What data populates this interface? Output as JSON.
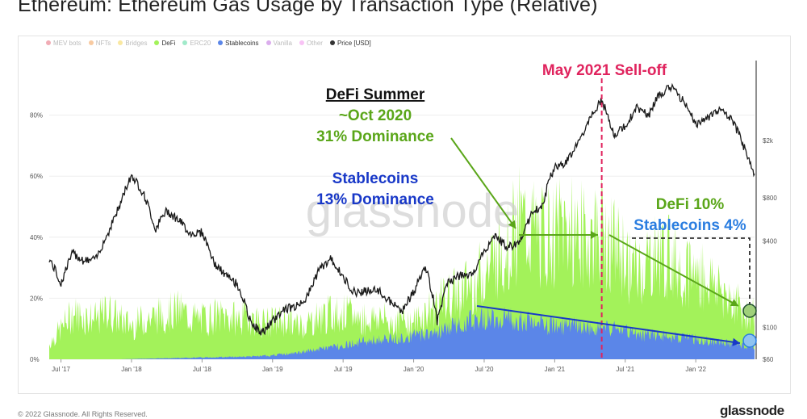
{
  "title": "Ethereum: Ethereum Gas Usage by Transaction Type (Relative)",
  "legend": [
    {
      "label": "MEV bots",
      "color": "#e0485a",
      "active": false
    },
    {
      "label": "NFTs",
      "color": "#f08a2e",
      "active": false
    },
    {
      "label": "Bridges",
      "color": "#f2cc2e",
      "active": false
    },
    {
      "label": "DeFi",
      "color": "#a3f25a",
      "active": true
    },
    {
      "label": "ERC20",
      "color": "#2ed189",
      "active": false
    },
    {
      "label": "Stablecoins",
      "color": "#5b86e8",
      "active": true
    },
    {
      "label": "Vanilla",
      "color": "#b04ad8",
      "active": false
    },
    {
      "label": "Other",
      "color": "#f07ae8",
      "active": false
    },
    {
      "label": "Price [USD]",
      "color": "#333333",
      "active": true
    }
  ],
  "watermark": "glassnode",
  "annotations": {
    "selloff": "May 2021 Sell-off",
    "defi_summer_heading": "DeFi Summer",
    "defi_summer_date": "~Oct 2020",
    "defi_summer_dominance": "31% Dominance",
    "stable_title": "Stablecoins",
    "stable_dominance": "13% Dominance",
    "defi_now": "DeFi 10%",
    "stable_now": "Stablecoins 4%"
  },
  "colors": {
    "defi": "#a3f25a",
    "stablecoins": "#5b86e8",
    "price": "#1a1a1a",
    "selloff": "#e0245e",
    "green_text": "#5aa619",
    "blue_text": "#1838c8",
    "stable_now_text": "#2a7de0"
  },
  "footer": {
    "copyright": "© 2022 Glassnode. All Rights Reserved.",
    "brand": "glassnode"
  },
  "chart_data": {
    "type": "area",
    "x_ticks": [
      "Jul '17",
      "Jan '18",
      "Jul '18",
      "Jan '19",
      "Jul '19",
      "Jan '20",
      "Jul '20",
      "Jan '21",
      "Jul '21",
      "Jan '22"
    ],
    "y_left_ticks": [
      "0%",
      "20%",
      "40%",
      "60%",
      "80%"
    ],
    "y_right_ticks": [
      "$60",
      "$100",
      "$400",
      "$800",
      "$2k"
    ],
    "y_left_range": [
      0,
      100
    ],
    "price_scale": "log",
    "x_range": [
      "2017-06",
      "2022-06"
    ],
    "series": [
      {
        "name": "DeFi",
        "unit": "% of gas (total incl. Stablecoins)",
        "points": [
          [
            "2017-06",
            5
          ],
          [
            "2017-07",
            10
          ],
          [
            "2017-08",
            15
          ],
          [
            "2017-09",
            14
          ],
          [
            "2017-10",
            13
          ],
          [
            "2017-11",
            16
          ],
          [
            "2017-12",
            13
          ],
          [
            "2018-01",
            11
          ],
          [
            "2018-02",
            13
          ],
          [
            "2018-03",
            14
          ],
          [
            "2018-04",
            15
          ],
          [
            "2018-05",
            16
          ],
          [
            "2018-06",
            14
          ],
          [
            "2018-07",
            13
          ],
          [
            "2018-08",
            14
          ],
          [
            "2018-09",
            14
          ],
          [
            "2018-10",
            13
          ],
          [
            "2018-11",
            14
          ],
          [
            "2018-12",
            12
          ],
          [
            "2019-01",
            12
          ],
          [
            "2019-02",
            13
          ],
          [
            "2019-03",
            11
          ],
          [
            "2019-04",
            12
          ],
          [
            "2019-05",
            14
          ],
          [
            "2019-06",
            15
          ],
          [
            "2019-07",
            15
          ],
          [
            "2019-08",
            14
          ],
          [
            "2019-09",
            13
          ],
          [
            "2019-10",
            14
          ],
          [
            "2019-11",
            12
          ],
          [
            "2019-12",
            13
          ],
          [
            "2020-01",
            12
          ],
          [
            "2020-02",
            15
          ],
          [
            "2020-03",
            18
          ],
          [
            "2020-04",
            20
          ],
          [
            "2020-05",
            22
          ],
          [
            "2020-06",
            25
          ],
          [
            "2020-07",
            28
          ],
          [
            "2020-08",
            34
          ],
          [
            "2020-09",
            38
          ],
          [
            "2020-10",
            44
          ],
          [
            "2020-11",
            42
          ],
          [
            "2020-12",
            40
          ],
          [
            "2021-01",
            41
          ],
          [
            "2021-02",
            43
          ],
          [
            "2021-03",
            41
          ],
          [
            "2021-04",
            39
          ],
          [
            "2021-05",
            42
          ],
          [
            "2021-06",
            37
          ],
          [
            "2021-07",
            33
          ],
          [
            "2021-08",
            28
          ],
          [
            "2021-09",
            32
          ],
          [
            "2021-10",
            34
          ],
          [
            "2021-11",
            33
          ],
          [
            "2021-12",
            30
          ],
          [
            "2022-01",
            28
          ],
          [
            "2022-02",
            26
          ],
          [
            "2022-03",
            24
          ],
          [
            "2022-04",
            20
          ],
          [
            "2022-05",
            16
          ],
          [
            "2022-06",
            14
          ]
        ]
      },
      {
        "name": "Stablecoins",
        "unit": "% of gas",
        "points": [
          [
            "2017-06",
            0
          ],
          [
            "2017-12",
            0
          ],
          [
            "2018-06",
            0.5
          ],
          [
            "2018-12",
            1
          ],
          [
            "2019-03",
            2
          ],
          [
            "2019-06",
            4
          ],
          [
            "2019-09",
            6
          ],
          [
            "2019-12",
            7
          ],
          [
            "2020-03",
            9
          ],
          [
            "2020-06",
            13
          ],
          [
            "2020-08",
            14
          ],
          [
            "2020-10",
            13
          ],
          [
            "2020-12",
            11
          ],
          [
            "2021-02",
            11
          ],
          [
            "2021-04",
            10
          ],
          [
            "2021-06",
            10
          ],
          [
            "2021-08",
            8
          ],
          [
            "2021-10",
            8
          ],
          [
            "2021-12",
            7
          ],
          [
            "2022-02",
            6
          ],
          [
            "2022-04",
            5
          ],
          [
            "2022-06",
            4
          ]
        ]
      },
      {
        "name": "Price [USD]",
        "unit": "USD (log scale, right axis)",
        "points": [
          [
            "2017-06",
            300
          ],
          [
            "2017-07",
            200
          ],
          [
            "2017-08",
            330
          ],
          [
            "2017-09",
            290
          ],
          [
            "2017-10",
            300
          ],
          [
            "2017-11",
            450
          ],
          [
            "2017-12",
            700
          ],
          [
            "2018-01",
            1150
          ],
          [
            "2018-02",
            860
          ],
          [
            "2018-03",
            480
          ],
          [
            "2018-04",
            650
          ],
          [
            "2018-05",
            560
          ],
          [
            "2018-06",
            450
          ],
          [
            "2018-07",
            460
          ],
          [
            "2018-08",
            280
          ],
          [
            "2018-09",
            230
          ],
          [
            "2018-10",
            200
          ],
          [
            "2018-11",
            115
          ],
          [
            "2018-12",
            90
          ],
          [
            "2019-01",
            110
          ],
          [
            "2019-02",
            135
          ],
          [
            "2019-03",
            140
          ],
          [
            "2019-04",
            165
          ],
          [
            "2019-05",
            255
          ],
          [
            "2019-06",
            300
          ],
          [
            "2019-07",
            220
          ],
          [
            "2019-08",
            175
          ],
          [
            "2019-09",
            180
          ],
          [
            "2019-10",
            180
          ],
          [
            "2019-11",
            150
          ],
          [
            "2019-12",
            130
          ],
          [
            "2020-01",
            175
          ],
          [
            "2020-02",
            260
          ],
          [
            "2020-03",
            110
          ],
          [
            "2020-04",
            210
          ],
          [
            "2020-05",
            230
          ],
          [
            "2020-06",
            228
          ],
          [
            "2020-07",
            340
          ],
          [
            "2020-08",
            430
          ],
          [
            "2020-09",
            360
          ],
          [
            "2020-10",
            390
          ],
          [
            "2020-11",
            600
          ],
          [
            "2020-12",
            730
          ],
          [
            "2021-01",
            1320
          ],
          [
            "2021-02",
            1420
          ],
          [
            "2021-03",
            1900
          ],
          [
            "2021-04",
            2800
          ],
          [
            "2021-05",
            3800
          ],
          [
            "2021-06",
            2200
          ],
          [
            "2021-07",
            2500
          ],
          [
            "2021-08",
            3400
          ],
          [
            "2021-09",
            3000
          ],
          [
            "2021-10",
            4300
          ],
          [
            "2021-11",
            4700
          ],
          [
            "2021-12",
            3700
          ],
          [
            "2022-01",
            2600
          ],
          [
            "2022-02",
            2900
          ],
          [
            "2022-03",
            3300
          ],
          [
            "2022-04",
            2800
          ],
          [
            "2022-05",
            1900
          ],
          [
            "2022-06",
            1100
          ]
        ]
      }
    ],
    "markers": [
      {
        "label": "May 2021 Sell-off",
        "date": "2021-05"
      }
    ],
    "grid": true,
    "legend_position": "top-left"
  }
}
